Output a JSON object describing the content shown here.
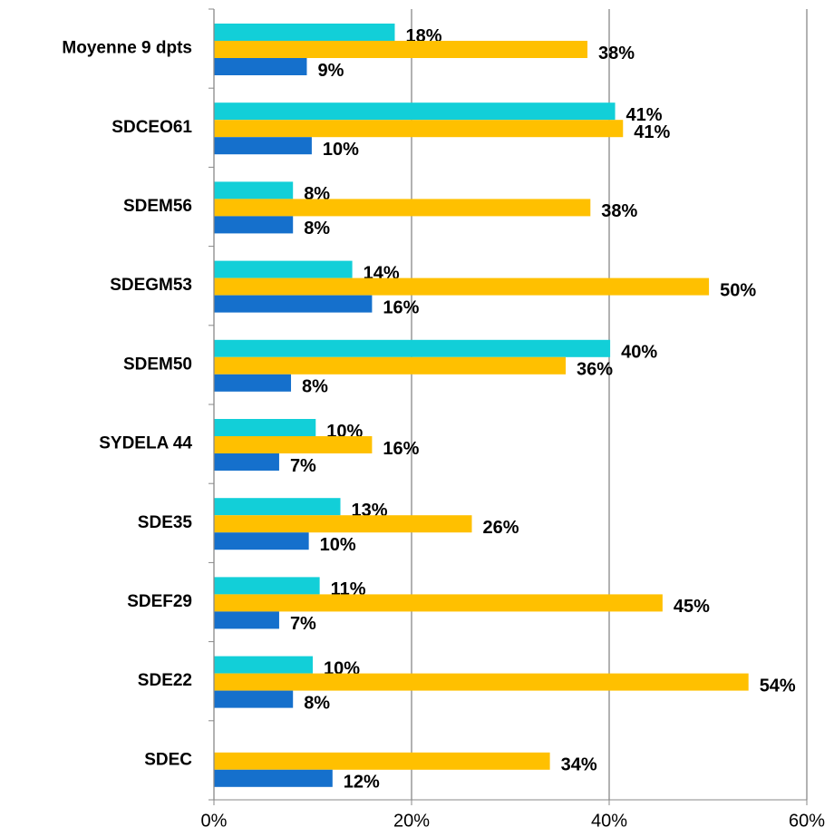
{
  "chart_data": {
    "type": "hbar",
    "categories": [
      "Moyenne 9 dpts",
      "SDCEO61",
      "SDEM56",
      "SDEGM53",
      "SDEM50",
      "SYDELA 44",
      "SDE35",
      "SDEF29",
      "SDE22",
      "SDEC"
    ],
    "series": [
      {
        "color": "#12cfd8",
        "values": [
          18.3,
          40.6,
          8.0,
          14.0,
          40.1,
          10.3,
          12.8,
          10.7,
          10.0,
          null
        ],
        "value_labels": [
          "18%",
          "41%",
          "8%",
          "14%",
          "40%",
          "10%",
          "13%",
          "11%",
          "10%",
          null
        ]
      },
      {
        "color": "#ffc000",
        "values": [
          37.8,
          41.4,
          38.1,
          50.1,
          35.6,
          16.0,
          26.1,
          45.4,
          54.1,
          34.0
        ],
        "value_labels": [
          "38%",
          "41%",
          "38%",
          "50%",
          "36%",
          "16%",
          "26%",
          "45%",
          "54%",
          "34%"
        ]
      },
      {
        "color": "#1570cc",
        "values": [
          9.4,
          9.9,
          8.0,
          16.0,
          7.8,
          6.6,
          9.6,
          6.6,
          8.0,
          12.0
        ],
        "value_labels": [
          "9%",
          "10%",
          "8%",
          "16%",
          "8%",
          "7%",
          "10%",
          "7%",
          "8%",
          "12%"
        ]
      }
    ],
    "xlim": [
      0,
      60
    ],
    "xticks": [
      {
        "value": 0,
        "label": "0%"
      },
      {
        "value": 20,
        "label": "20%"
      },
      {
        "value": 40,
        "label": "40%"
      },
      {
        "value": 60,
        "label": "60%"
      }
    ],
    "grid": true
  }
}
